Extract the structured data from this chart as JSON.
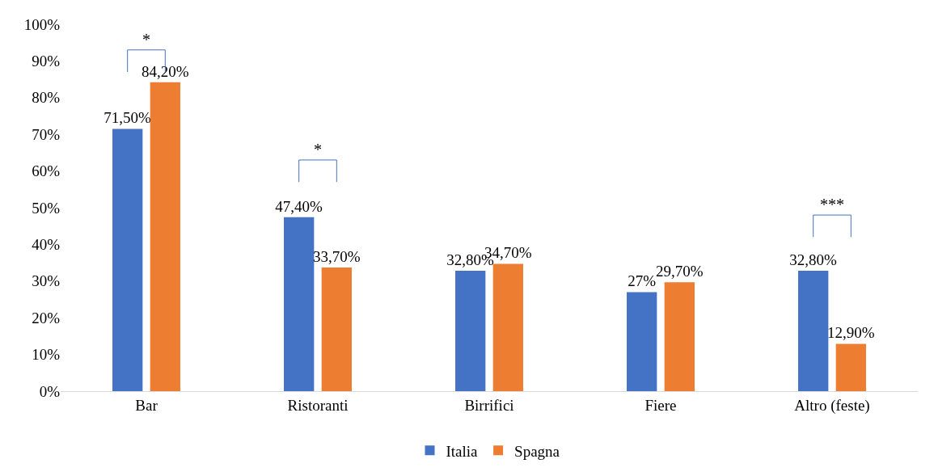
{
  "chart_data": {
    "type": "bar",
    "categories": [
      "Bar",
      "Ristoranti",
      "Birrifici",
      "Fiere",
      "Altro (feste)"
    ],
    "series": [
      {
        "name": "Italia",
        "color": "#4472c4",
        "values": [
          71.5,
          47.4,
          32.8,
          27,
          32.8
        ],
        "value_labels": [
          "71,50%",
          "47,40%",
          "32,80%",
          "27%",
          "32,80%"
        ]
      },
      {
        "name": "Spagna",
        "color": "#ed7d31",
        "values": [
          84.2,
          33.7,
          34.7,
          29.7,
          12.9
        ],
        "value_labels": [
          "84,20%",
          "33,70%",
          "34,70%",
          "29,70%",
          "12,90%"
        ]
      }
    ],
    "ylim": [
      0,
      100
    ],
    "yticks": [
      {
        "value": 0,
        "label": "0%"
      },
      {
        "value": 10,
        "label": "10%"
      },
      {
        "value": 20,
        "label": "20%"
      },
      {
        "value": 30,
        "label": "30%"
      },
      {
        "value": 40,
        "label": "40%"
      },
      {
        "value": 50,
        "label": "50%"
      },
      {
        "value": 60,
        "label": "60%"
      },
      {
        "value": 70,
        "label": "70%"
      },
      {
        "value": 80,
        "label": "80%"
      },
      {
        "value": 90,
        "label": "90%"
      },
      {
        "value": 100,
        "label": "100%"
      }
    ],
    "annotations": [
      "*",
      "*",
      "***"
    ],
    "grid": false,
    "legend": "bottom"
  }
}
